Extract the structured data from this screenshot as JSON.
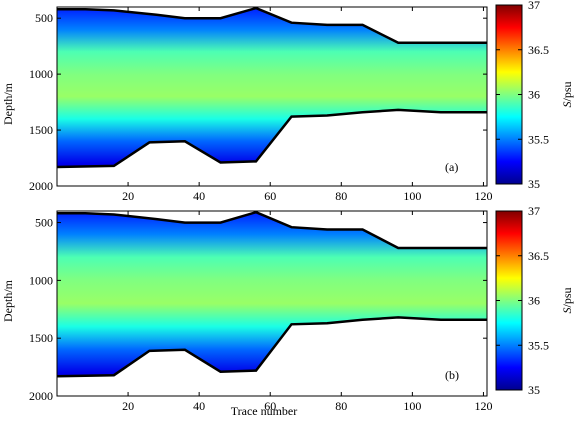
{
  "colors": {
    "colormap": [
      "#00008f",
      "#0000ff",
      "#0080ff",
      "#00ffff",
      "#80ff80",
      "#ffff00",
      "#ff8000",
      "#ff0000",
      "#800000"
    ],
    "plot_background": "#ffffff",
    "boundary": "#000000"
  },
  "chart_data": [
    {
      "type": "heatmap",
      "panel_label": "(a)",
      "xlabel": "",
      "ylabel": "Depth/m",
      "xlim": [
        0,
        121
      ],
      "ylim": [
        2000,
        400
      ],
      "x_ticks": [
        20,
        40,
        60,
        80,
        100,
        120
      ],
      "y_ticks": [
        500,
        1000,
        1500,
        2000
      ],
      "grid": false,
      "colorbar": {
        "label_italic": "S",
        "label_rest": "/psu",
        "ticks": [
          "35",
          "35.5",
          "36",
          "36.5",
          "37"
        ],
        "range": [
          35,
          37
        ]
      },
      "top_boundary": {
        "trace": [
          0,
          8,
          16,
          28,
          36,
          46,
          56,
          66,
          76,
          86,
          96,
          108,
          121
        ],
        "depth": [
          420,
          420,
          430,
          470,
          500,
          500,
          410,
          540,
          560,
          560,
          720,
          720,
          720
        ]
      },
      "bottom_boundary": {
        "trace": [
          0,
          16,
          26,
          36,
          46,
          56,
          66,
          76,
          86,
          96,
          108,
          121
        ],
        "depth": [
          1830,
          1820,
          1610,
          1600,
          1790,
          1780,
          1380,
          1370,
          1340,
          1320,
          1340,
          1340
        ]
      },
      "salinity_profile": {
        "depth": [
          400,
          600,
          800,
          1000,
          1200,
          1400,
          1600,
          1800,
          2000
        ],
        "salinity": [
          35.3,
          35.5,
          35.9,
          36.0,
          36.05,
          35.8,
          35.45,
          35.2,
          35.1
        ]
      }
    },
    {
      "type": "heatmap",
      "panel_label": "(b)",
      "xlabel": "Trace number",
      "ylabel": "Depth/m",
      "xlim": [
        0,
        121
      ],
      "ylim": [
        2000,
        400
      ],
      "x_ticks": [
        20,
        40,
        60,
        80,
        100,
        120
      ],
      "y_ticks": [
        500,
        1000,
        1500,
        2000
      ],
      "grid": false,
      "colorbar": {
        "label_italic": "S",
        "label_rest": "/psu",
        "ticks": [
          "35",
          "35.5",
          "36",
          "36.5",
          "37"
        ],
        "range": [
          35,
          37
        ]
      },
      "top_boundary": {
        "trace": [
          0,
          8,
          16,
          28,
          36,
          46,
          56,
          66,
          76,
          86,
          96,
          108,
          121
        ],
        "depth": [
          420,
          420,
          430,
          470,
          500,
          500,
          410,
          540,
          560,
          560,
          720,
          720,
          720
        ]
      },
      "bottom_boundary": {
        "trace": [
          0,
          16,
          26,
          36,
          46,
          56,
          66,
          76,
          86,
          96,
          108,
          121
        ],
        "depth": [
          1830,
          1820,
          1610,
          1600,
          1790,
          1780,
          1380,
          1370,
          1340,
          1320,
          1340,
          1340
        ]
      },
      "salinity_profile": {
        "depth": [
          400,
          600,
          800,
          1000,
          1200,
          1400,
          1600,
          1800,
          2000
        ],
        "salinity": [
          35.3,
          35.5,
          35.9,
          36.0,
          36.05,
          35.8,
          35.45,
          35.2,
          35.1
        ]
      }
    }
  ]
}
